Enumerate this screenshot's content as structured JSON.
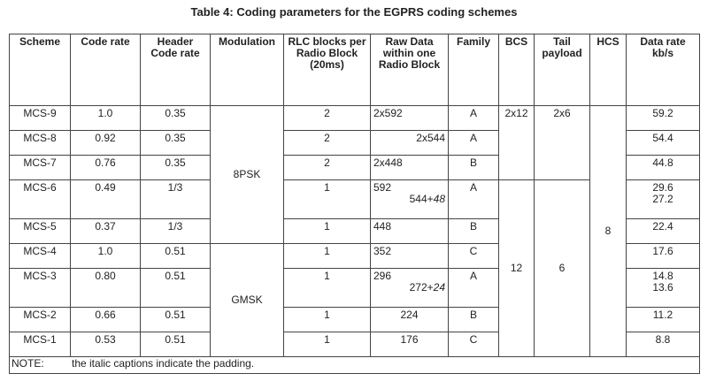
{
  "title": "Table 4: Coding parameters for the EGPRS coding schemes",
  "headers": [
    "Scheme",
    "Code rate",
    "Header Code rate",
    "Modulation",
    "RLC blocks per Radio Block (20ms)",
    "Raw Data within one Radio Block",
    "Family",
    "BCS",
    "Tail payload",
    "HCS",
    "Data rate kb/s"
  ],
  "rows": [
    {
      "scheme": "MCS-9",
      "code_rate": "1.0",
      "header_rate": "0.35",
      "rlc": "2",
      "raw": "2x592",
      "raw_pad": "",
      "family": "A",
      "rate": "59.2",
      "rate2": ""
    },
    {
      "scheme": "MCS-8",
      "code_rate": "0.92",
      "header_rate": "0.35",
      "rlc": "2",
      "raw": "2x544",
      "raw_pad": "",
      "family": "A",
      "rate": "54.4",
      "rate2": ""
    },
    {
      "scheme": "MCS-7",
      "code_rate": "0.76",
      "header_rate": "0.35",
      "rlc": "2",
      "raw": "2x448",
      "raw_pad": "",
      "family": "B",
      "rate": "44.8",
      "rate2": ""
    },
    {
      "scheme": "MCS-6",
      "code_rate": "0.49",
      "header_rate": "1/3",
      "rlc": "1",
      "raw": "592",
      "raw_pad_base": "544+",
      "raw_pad_italic": "48",
      "family": "A",
      "rate": "29.6",
      "rate2": "27.2"
    },
    {
      "scheme": "MCS-5",
      "code_rate": "0.37",
      "header_rate": "1/3",
      "rlc": "1",
      "raw": "448",
      "raw_pad": "",
      "family": "B",
      "rate": "22.4",
      "rate2": ""
    },
    {
      "scheme": "MCS-4",
      "code_rate": "1.0",
      "header_rate": "0.51",
      "rlc": "1",
      "raw": "352",
      "raw_pad": "",
      "family": "C",
      "rate": "17.6",
      "rate2": ""
    },
    {
      "scheme": "MCS-3",
      "code_rate": "0.80",
      "header_rate": "0.51",
      "rlc": "1",
      "raw": "296",
      "raw_pad_base": "272+",
      "raw_pad_italic": "24",
      "family": "A",
      "rate": "14.8",
      "rate2": "13.6"
    },
    {
      "scheme": "MCS-2",
      "code_rate": "0.66",
      "header_rate": "0.51",
      "rlc": "1",
      "raw": "224",
      "raw_pad": "",
      "family": "B",
      "rate": "11.2",
      "rate2": ""
    },
    {
      "scheme": "MCS-1",
      "code_rate": "0.53",
      "header_rate": "0.51",
      "rlc": "1",
      "raw": "176",
      "raw_pad": "",
      "family": "C",
      "rate": "8.8",
      "rate2": ""
    }
  ],
  "merged": {
    "modulation_8psk": "8PSK",
    "modulation_gmsk": "GMSK",
    "bcs_top": "2x12",
    "bcs_bottom": "12",
    "tail_top": "2x6",
    "tail_bottom": "6",
    "hcs": "8"
  },
  "note": {
    "label": "NOTE:",
    "text": "the italic captions indicate the padding."
  }
}
